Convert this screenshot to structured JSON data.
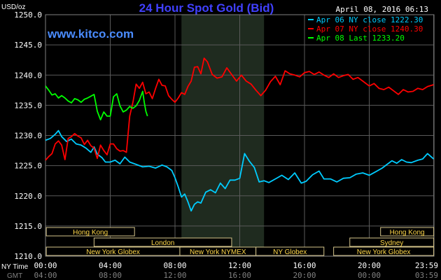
{
  "chart_data": {
    "type": "line",
    "title": "24 Hour Spot Gold (Bid)",
    "ylabel": "USD/oz",
    "watermark": "www.kitco.com",
    "timestamp": "April 08, 2016 06:13",
    "ylim": [
      1210,
      1250
    ],
    "y_ticks": [
      "1250.0",
      "1245.0",
      "1240.0",
      "1235.0",
      "1230.0",
      "1225.0",
      "1220.0",
      "1215.0",
      "1210.0"
    ],
    "y_tick_values": [
      1250,
      1245,
      1240,
      1235,
      1230,
      1225,
      1220,
      1215,
      1210
    ],
    "xlim": [
      0,
      24
    ],
    "x_row_labels": {
      "ny": "NY Time",
      "gmt": "GMT"
    },
    "x_ticks_ny": [
      "00:00",
      "04:00",
      "08:00",
      "12:00",
      "16:00",
      "20:00",
      "23:59"
    ],
    "x_ticks_gmt": [
      "04:00",
      "08:00",
      "12:00",
      "16:00",
      "20:00",
      "00:00",
      "03:59"
    ],
    "x_tick_hours": [
      0,
      4,
      8,
      12,
      16,
      20,
      23.98
    ],
    "grid": true,
    "shaded_region": [
      8.4,
      13.5
    ],
    "colors": {
      "apr06": "#00ccff",
      "apr07": "#ff0000",
      "apr08": "#00ff00"
    },
    "legend": [
      {
        "key": "apr06",
        "label": "Apr 06 NY close 1222.30"
      },
      {
        "key": "apr07",
        "label": "Apr 07 NY close 1240.30"
      },
      {
        "key": "apr08",
        "label": "Apr 08 Last 1233.20"
      }
    ],
    "sessions": [
      {
        "label": "Hong Kong",
        "row": 0,
        "start": 0.05,
        "end": 5.5
      },
      {
        "label": "Hong Kong",
        "row": 0,
        "start": 20.7,
        "end": 23.98
      },
      {
        "label": "London",
        "row": 1,
        "start": 3.0,
        "end": 11.5
      },
      {
        "label": "Sydney",
        "row": 1,
        "start": 18.8,
        "end": 23.98
      },
      {
        "label": "New York Globex",
        "row": 2,
        "start": 0.05,
        "end": 8.3
      },
      {
        "label": "New York NYMEX",
        "row": 2,
        "start": 8.3,
        "end": 13.0
      },
      {
        "label": "NY Globex",
        "row": 2,
        "start": 13.0,
        "end": 17.2
      },
      {
        "label": "New York Globex",
        "row": 2,
        "start": 17.8,
        "end": 23.98
      }
    ],
    "series": [
      {
        "key": "apr06",
        "points": [
          [
            0,
            1229.2
          ],
          [
            0.3,
            1229.5
          ],
          [
            0.6,
            1230.2
          ],
          [
            0.8,
            1230.8
          ],
          [
            1.0,
            1229.8
          ],
          [
            1.3,
            1229.0
          ],
          [
            1.6,
            1229.4
          ],
          [
            1.9,
            1228.6
          ],
          [
            2.2,
            1228.4
          ],
          [
            2.5,
            1227.9
          ],
          [
            2.8,
            1227.2
          ],
          [
            3.0,
            1228.1
          ],
          [
            3.2,
            1226.9
          ],
          [
            3.5,
            1226.3
          ],
          [
            3.7,
            1225.6
          ],
          [
            4.0,
            1225.6
          ],
          [
            4.3,
            1225.9
          ],
          [
            4.6,
            1225.3
          ],
          [
            4.9,
            1226.4
          ],
          [
            5.2,
            1225.6
          ],
          [
            5.6,
            1225.2
          ],
          [
            6.0,
            1224.8
          ],
          [
            6.4,
            1224.9
          ],
          [
            6.8,
            1224.6
          ],
          [
            7.2,
            1225.1
          ],
          [
            7.5,
            1224.8
          ],
          [
            7.8,
            1224.2
          ],
          [
            8.0,
            1223.0
          ],
          [
            8.2,
            1221.5
          ],
          [
            8.4,
            1219.8
          ],
          [
            8.6,
            1220.3
          ],
          [
            8.8,
            1219.0
          ],
          [
            9.0,
            1217.5
          ],
          [
            9.2,
            1218.6
          ],
          [
            9.4,
            1219.0
          ],
          [
            9.6,
            1218.8
          ],
          [
            9.9,
            1220.6
          ],
          [
            10.2,
            1221.0
          ],
          [
            10.5,
            1220.5
          ],
          [
            10.8,
            1222.1
          ],
          [
            11.1,
            1221.2
          ],
          [
            11.4,
            1222.6
          ],
          [
            11.7,
            1222.6
          ],
          [
            12.0,
            1222.9
          ],
          [
            12.3,
            1227.0
          ],
          [
            12.6,
            1225.7
          ],
          [
            12.9,
            1224.7
          ],
          [
            13.2,
            1222.3
          ],
          [
            13.5,
            1222.5
          ],
          [
            13.8,
            1222.2
          ],
          [
            14.2,
            1222.8
          ],
          [
            14.6,
            1223.4
          ],
          [
            15.0,
            1222.7
          ],
          [
            15.4,
            1223.8
          ],
          [
            15.8,
            1222.1
          ],
          [
            16.1,
            1222.4
          ],
          [
            16.5,
            1223.5
          ],
          [
            16.9,
            1224.1
          ],
          [
            17.2,
            1222.8
          ],
          [
            17.6,
            1222.8
          ],
          [
            18.0,
            1222.3
          ],
          [
            18.4,
            1222.9
          ],
          [
            18.8,
            1223.0
          ],
          [
            19.2,
            1223.6
          ],
          [
            19.6,
            1223.8
          ],
          [
            20.0,
            1223.4
          ],
          [
            20.4,
            1224.0
          ],
          [
            20.8,
            1224.6
          ],
          [
            21.1,
            1225.2
          ],
          [
            21.4,
            1225.8
          ],
          [
            21.7,
            1225.4
          ],
          [
            22.0,
            1226.0
          ],
          [
            22.3,
            1225.6
          ],
          [
            22.6,
            1225.5
          ],
          [
            23.0,
            1225.9
          ],
          [
            23.3,
            1226.1
          ],
          [
            23.6,
            1227.0
          ],
          [
            23.98,
            1226.1
          ]
        ]
      },
      {
        "key": "apr07",
        "points": [
          [
            0,
            1225.9
          ],
          [
            0.2,
            1226.5
          ],
          [
            0.4,
            1227.0
          ],
          [
            0.6,
            1228.6
          ],
          [
            0.8,
            1229.1
          ],
          [
            1.0,
            1228.4
          ],
          [
            1.2,
            1226.0
          ],
          [
            1.4,
            1229.5
          ],
          [
            1.6,
            1229.8
          ],
          [
            1.8,
            1230.3
          ],
          [
            2.0,
            1229.9
          ],
          [
            2.2,
            1229.6
          ],
          [
            2.4,
            1228.5
          ],
          [
            2.6,
            1229.2
          ],
          [
            2.8,
            1228.3
          ],
          [
            3.0,
            1227.9
          ],
          [
            3.2,
            1226.2
          ],
          [
            3.4,
            1228.4
          ],
          [
            3.6,
            1227.5
          ],
          [
            3.8,
            1226.8
          ],
          [
            4.0,
            1228.6
          ],
          [
            4.2,
            1228.6
          ],
          [
            4.4,
            1227.8
          ],
          [
            4.6,
            1227.4
          ],
          [
            4.8,
            1227.5
          ],
          [
            5.0,
            1227.2
          ],
          [
            5.2,
            1233.2
          ],
          [
            5.4,
            1235.5
          ],
          [
            5.6,
            1238.5
          ],
          [
            5.8,
            1237.8
          ],
          [
            6.0,
            1238.8
          ],
          [
            6.2,
            1236.9
          ],
          [
            6.4,
            1237.2
          ],
          [
            6.6,
            1236.1
          ],
          [
            6.8,
            1237.8
          ],
          [
            7.0,
            1239.3
          ],
          [
            7.2,
            1238.3
          ],
          [
            7.4,
            1238.2
          ],
          [
            7.6,
            1236.6
          ],
          [
            7.8,
            1236.0
          ],
          [
            8.0,
            1235.5
          ],
          [
            8.2,
            1236.2
          ],
          [
            8.4,
            1237.1
          ],
          [
            8.6,
            1236.8
          ],
          [
            8.8,
            1238.1
          ],
          [
            9.0,
            1239.0
          ],
          [
            9.2,
            1241.3
          ],
          [
            9.4,
            1241.4
          ],
          [
            9.6,
            1240.2
          ],
          [
            9.8,
            1242.8
          ],
          [
            10.0,
            1242.2
          ],
          [
            10.3,
            1240.1
          ],
          [
            10.6,
            1239.5
          ],
          [
            10.9,
            1239.7
          ],
          [
            11.2,
            1241.2
          ],
          [
            11.5,
            1240.1
          ],
          [
            11.8,
            1239.0
          ],
          [
            12.1,
            1240.0
          ],
          [
            12.4,
            1239.0
          ],
          [
            12.7,
            1238.5
          ],
          [
            13.0,
            1237.5
          ],
          [
            13.3,
            1236.6
          ],
          [
            13.6,
            1237.5
          ],
          [
            13.9,
            1238.9
          ],
          [
            14.2,
            1239.8
          ],
          [
            14.5,
            1238.4
          ],
          [
            14.8,
            1240.7
          ],
          [
            15.1,
            1240.2
          ],
          [
            15.4,
            1240.0
          ],
          [
            15.7,
            1239.7
          ],
          [
            16.0,
            1240.4
          ],
          [
            16.3,
            1240.6
          ],
          [
            16.6,
            1240.1
          ],
          [
            16.9,
            1240.5
          ],
          [
            17.2,
            1240.0
          ],
          [
            17.5,
            1239.6
          ],
          [
            17.8,
            1240.2
          ],
          [
            18.1,
            1239.6
          ],
          [
            18.4,
            1239.9
          ],
          [
            18.7,
            1240.1
          ],
          [
            19.0,
            1239.3
          ],
          [
            19.3,
            1239.6
          ],
          [
            19.6,
            1239.0
          ],
          [
            20.0,
            1238.2
          ],
          [
            20.3,
            1238.6
          ],
          [
            20.6,
            1237.8
          ],
          [
            20.9,
            1237.6
          ],
          [
            21.2,
            1238.0
          ],
          [
            21.5,
            1237.4
          ],
          [
            21.8,
            1236.8
          ],
          [
            22.1,
            1237.6
          ],
          [
            22.4,
            1237.2
          ],
          [
            22.7,
            1237.3
          ],
          [
            23.0,
            1237.8
          ],
          [
            23.3,
            1237.6
          ],
          [
            23.6,
            1238.1
          ],
          [
            23.98,
            1238.4
          ]
        ]
      },
      {
        "key": "apr08",
        "points": [
          [
            0,
            1238.2
          ],
          [
            0.2,
            1237.5
          ],
          [
            0.4,
            1236.7
          ],
          [
            0.6,
            1236.9
          ],
          [
            0.8,
            1236.2
          ],
          [
            1.0,
            1236.6
          ],
          [
            1.2,
            1236.2
          ],
          [
            1.4,
            1235.7
          ],
          [
            1.6,
            1235.4
          ],
          [
            1.8,
            1236.1
          ],
          [
            2.0,
            1235.9
          ],
          [
            2.2,
            1235.5
          ],
          [
            2.4,
            1236.0
          ],
          [
            2.6,
            1236.2
          ],
          [
            2.8,
            1236.5
          ],
          [
            3.0,
            1236.8
          ],
          [
            3.2,
            1234.0
          ],
          [
            3.4,
            1232.6
          ],
          [
            3.6,
            1233.9
          ],
          [
            3.8,
            1233.2
          ],
          [
            4.0,
            1233.2
          ],
          [
            4.2,
            1236.4
          ],
          [
            4.4,
            1236.9
          ],
          [
            4.6,
            1234.9
          ],
          [
            4.8,
            1233.9
          ],
          [
            5.0,
            1234.2
          ],
          [
            5.2,
            1234.8
          ],
          [
            5.4,
            1234.5
          ],
          [
            5.6,
            1234.9
          ],
          [
            5.8,
            1235.8
          ],
          [
            6.0,
            1237.3
          ],
          [
            6.1,
            1235.5
          ],
          [
            6.2,
            1234.0
          ],
          [
            6.3,
            1233.2
          ]
        ]
      }
    ]
  }
}
